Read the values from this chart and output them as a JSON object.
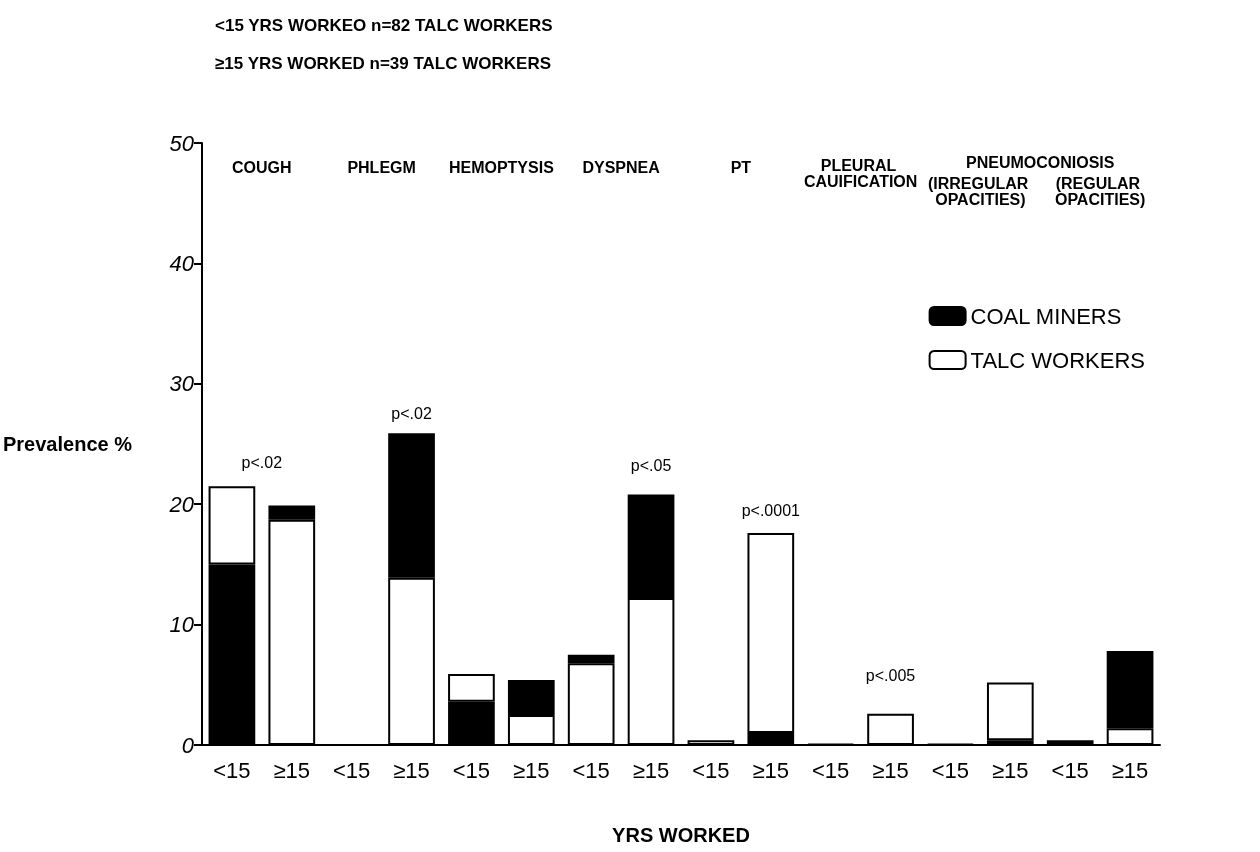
{
  "chart_data": {
    "type": "bar",
    "title": "<15 YRS WORKEO n=82 TALC WORKERS",
    "subtitle": "≥15 YRS WORKED n=39 TALC WORKERS",
    "xlabel": "YRS WORKED",
    "ylabel": "Prevalence %",
    "categories": [
      "<15",
      "≥15",
      "<15",
      "≥15",
      "<15",
      "≥15",
      "<15",
      "≥15",
      "<15",
      "≥15",
      "<15",
      "≥15",
      "<15",
      "≥15",
      "<15",
      "≥15"
    ],
    "stacked": true,
    "series": [
      {
        "name": "COAL MINERS",
        "color": "#000000",
        "values": [
          15,
          null,
          null,
          null,
          3.6,
          null,
          null,
          null,
          null,
          1.0,
          0.1,
          null,
          0.1,
          0.4,
          0.4,
          null
        ]
      },
      {
        "name": "TALC WORKERS",
        "color": "#ffffff",
        "values": [
          6.5,
          18.7,
          null,
          13.9,
          2.3,
          2.5,
          6.8,
          12.2,
          0.4,
          16.6,
          null,
          2.6,
          null,
          4.8,
          null,
          1.4
        ]
      },
      {
        "color": "#000000",
        "values": [
          null,
          1.2,
          null,
          12.0,
          null,
          2.9,
          0.7,
          8.6,
          null,
          null,
          null,
          null,
          null,
          null,
          null,
          6.4
        ]
      }
    ],
    "ylim": [
      0,
      50
    ],
    "yticks": [
      0,
      10,
      20,
      30,
      40,
      50
    ],
    "annotations": [
      "COUGH",
      "PHLEGM",
      "HEMOPTYSIS",
      "DYSPNEA",
      "PT",
      "PLEURAL CAUIFICATION",
      "PNEUMOCONIOSIS",
      "(IRREGULAR OPACITIES)",
      "(REGULAR OPACITIES)",
      "p<.02",
      "p<.02",
      "p<.05",
      "p<.0001",
      "p<.005"
    ],
    "grid": false,
    "legend": "top right"
  }
}
